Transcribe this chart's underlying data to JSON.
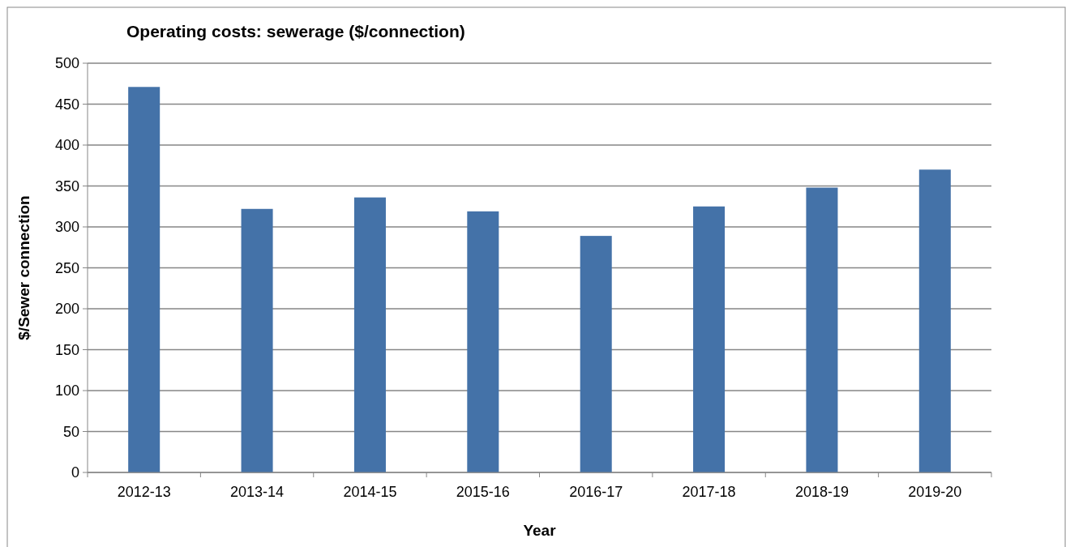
{
  "chart_data": {
    "type": "bar",
    "title": "Operating costs: sewerage ($/connection)",
    "xlabel": "Year",
    "ylabel": "$/Sewer connection",
    "categories": [
      "2012-13",
      "2013-14",
      "2014-15",
      "2015-16",
      "2016-17",
      "2017-18",
      "2018-19",
      "2019-20"
    ],
    "values": [
      471,
      322,
      336,
      319,
      289,
      325,
      348,
      370
    ],
    "color": "#4472a8",
    "ylim": [
      0,
      500
    ],
    "yticks": [
      0,
      50,
      100,
      150,
      200,
      250,
      300,
      350,
      400,
      450,
      500
    ],
    "grid": "y"
  }
}
